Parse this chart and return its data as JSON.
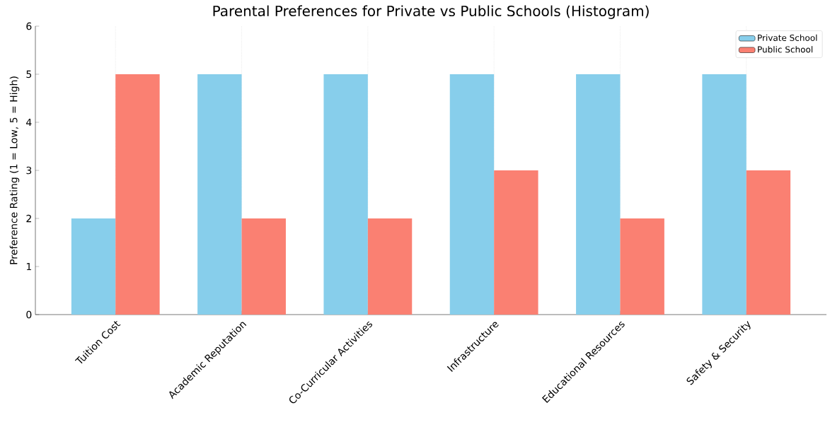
{
  "chart_data": {
    "type": "bar",
    "title": "Parental Preferences for Private vs Public Schools (Histogram)",
    "ylabel": "Preference Rating (1 = Low, 5 = High)",
    "categories": [
      "Tuition Cost",
      "Academic Reputation",
      "Co-Curricular Activities",
      "Infrastructure",
      "Educational Resources",
      "Safety & Security"
    ],
    "series": [
      {
        "name": "Private School",
        "color": "#87ceeb",
        "values": [
          2,
          5,
          5,
          5,
          5,
          5
        ]
      },
      {
        "name": "Public School",
        "color": "#fa8072",
        "values": [
          5,
          2,
          2,
          3,
          2,
          3
        ]
      }
    ],
    "ylim": [
      0,
      6
    ],
    "yticks": [
      0,
      1,
      2,
      3,
      4,
      5,
      6
    ],
    "grid": "x",
    "legend": "top right"
  }
}
